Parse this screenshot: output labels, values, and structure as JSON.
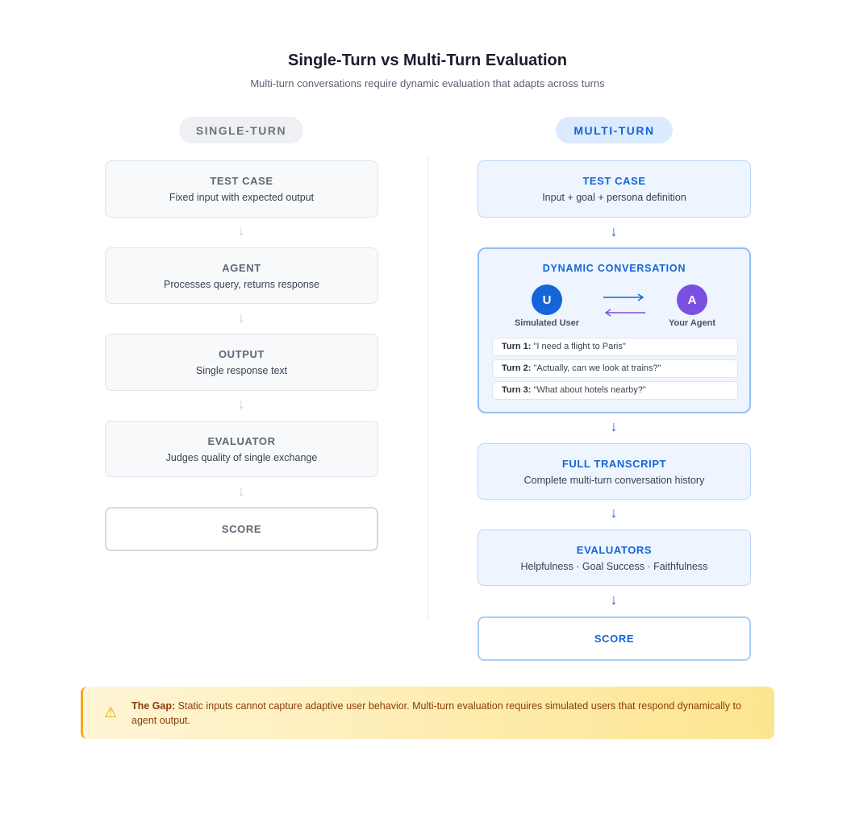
{
  "title": "Single-Turn vs Multi-Turn Evaluation",
  "subtitle": "Multi-turn conversations require dynamic evaluation that adapts across turns",
  "single": {
    "label": "SINGLE-TURN",
    "steps": [
      {
        "title": "TEST CASE",
        "desc": "Fixed input with expected output"
      },
      {
        "title": "AGENT",
        "desc": "Processes query, returns response"
      },
      {
        "title": "OUTPUT",
        "desc": "Single response text"
      },
      {
        "title": "EVALUATOR",
        "desc": "Judges quality of single exchange"
      }
    ],
    "score": "SCORE"
  },
  "multi": {
    "label": "MULTI-TURN",
    "test_case": {
      "title": "TEST CASE",
      "desc": "Input + goal + persona definition"
    },
    "dynamic": {
      "title": "DYNAMIC CONVERSATION",
      "user_initial": "U",
      "user_label": "Simulated User",
      "agent_initial": "A",
      "agent_label": "Your Agent",
      "turns": [
        {
          "label": "Turn 1:",
          "text": "\"I need a flight to Paris\""
        },
        {
          "label": "Turn 2:",
          "text": "\"Actually, can we look at trains?\""
        },
        {
          "label": "Turn 3:",
          "text": "\"What about hotels nearby?\""
        }
      ]
    },
    "transcript": {
      "title": "FULL TRANSCRIPT",
      "desc": "Complete multi-turn conversation history"
    },
    "evaluators": {
      "title": "EVALUATORS",
      "desc": "Helpfulness · Goal Success · Faithfulness"
    },
    "score": "SCORE"
  },
  "gap": {
    "icon": "warning-icon",
    "label": "The Gap:",
    "text": " Static inputs cannot capture adaptive user behavior. Multi-turn evaluation requires simulated users that respond dynamically to agent output."
  },
  "colors": {
    "accent": "#1565d8",
    "agent": "#7b4fe0",
    "warning": "#f5a623"
  }
}
